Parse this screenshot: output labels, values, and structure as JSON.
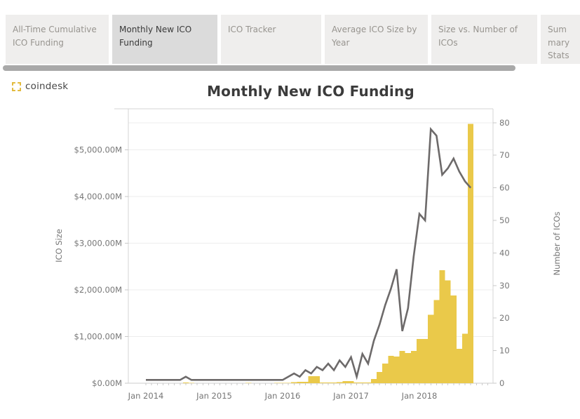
{
  "tabs": [
    {
      "label": "All-Time Cumulative ICO Funding",
      "active": false
    },
    {
      "label": "Monthly New ICO Funding",
      "active": true
    },
    {
      "label": "ICO Tracker",
      "active": false
    },
    {
      "label": "Average ICO Size by Year",
      "active": false
    },
    {
      "label": "Size vs. Number of ICOs",
      "active": false
    },
    {
      "label": "Summary Stats",
      "active": false
    }
  ],
  "brand": {
    "name": "coindesk"
  },
  "chart_data": {
    "type": "combo-bar-line",
    "title": "Monthly New ICO Funding",
    "x_start": "Jan 2014",
    "x_end": "Oct 2018",
    "x_tick_labels": [
      "Jan 2014",
      "Jan 2015",
      "Jan 2016",
      "Jan 2017",
      "Jan 2018"
    ],
    "x_tick_month_indices": [
      0,
      12,
      24,
      36,
      48
    ],
    "left_axis": {
      "label": "ICO Size",
      "unit": "$M",
      "tick_labels": [
        "$0.00M",
        "$1,000.00M",
        "$2,000.00M",
        "$3,000.00M",
        "$4,000.00M",
        "$5,000.00M"
      ],
      "tick_values": [
        0,
        1000,
        2000,
        3000,
        4000,
        5000
      ]
    },
    "right_axis": {
      "label": "Number of ICOs",
      "tick_values": [
        0,
        10,
        20,
        30,
        40,
        50,
        60,
        70,
        80
      ]
    },
    "grid": true,
    "legend": "none",
    "colors": {
      "bar": "#eac94a",
      "line": "#6d6a6a",
      "grid": "#ededed",
      "axis": "#cfcfcf",
      "text": "#767676"
    },
    "series": [
      {
        "name": "ICO Size ($M)",
        "type": "bar",
        "axis": "left",
        "values": [
          0,
          0,
          0,
          0,
          0,
          0,
          0,
          15,
          10,
          0,
          0,
          0,
          0,
          0,
          0,
          0,
          0,
          0,
          4,
          0,
          0,
          0,
          0,
          4,
          4,
          8,
          25,
          30,
          28,
          150,
          148,
          14,
          12,
          14,
          20,
          45,
          45,
          18,
          14,
          14,
          90,
          240,
          420,
          590,
          575,
          695,
          650,
          695,
          950,
          950,
          1465,
          1780,
          2420,
          2200,
          1880,
          740,
          1060,
          5560
        ]
      },
      {
        "name": "Number of ICOs",
        "type": "line",
        "axis": "right",
        "values": [
          1,
          1,
          1,
          1,
          1,
          1,
          1,
          2,
          1,
          1,
          1,
          1,
          1,
          1,
          1,
          1,
          1,
          1,
          1,
          1,
          1,
          1,
          1,
          1,
          1,
          2,
          3,
          2,
          4,
          3,
          5,
          4,
          6,
          4,
          7,
          5,
          8,
          2,
          9,
          6,
          13,
          18,
          24,
          29,
          35,
          16,
          23,
          39,
          52,
          50,
          78,
          76,
          64,
          66,
          69,
          65,
          62,
          60
        ]
      }
    ]
  }
}
